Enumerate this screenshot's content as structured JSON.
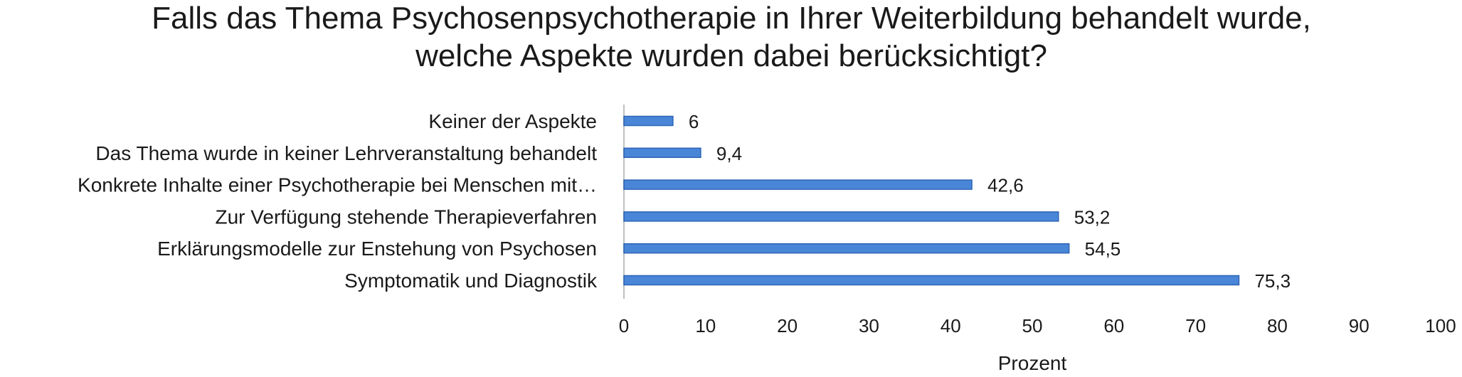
{
  "chart_data": {
    "type": "bar",
    "orientation": "horizontal",
    "title_lines": [
      "Falls das Thema Psychosenpsychotherapie in Ihrer Weiterbildung behandelt wurde,",
      "welche Aspekte wurden dabei berücksichtigt?"
    ],
    "categories": [
      "Keiner der Aspekte",
      "Das Thema wurde in keiner Lehrveranstaltung behandelt",
      "Konkrete Inhalte einer Psychotherapie bei Menschen mit…",
      "Zur Verfügung stehende Therapieverfahren",
      "Erklärungsmodelle zur Enstehung von Psychosen",
      "Symptomatik und Diagnostik"
    ],
    "values": [
      6,
      9.4,
      42.6,
      53.2,
      54.5,
      75.3
    ],
    "value_labels": [
      "6",
      "9,4",
      "42,6",
      "53,2",
      "54,5",
      "75,3"
    ],
    "xlabel": "Prozent",
    "ylabel": "",
    "xlim": [
      0,
      100
    ],
    "xticks": [
      "0",
      "10",
      "20",
      "30",
      "40",
      "50",
      "60",
      "70",
      "80",
      "90",
      "100"
    ],
    "grid": false,
    "legend": "none",
    "colors": {
      "bar_fill": "#4a86d8",
      "bar_stroke": "#2c64b5",
      "axis": "#bfbfbf"
    }
  }
}
